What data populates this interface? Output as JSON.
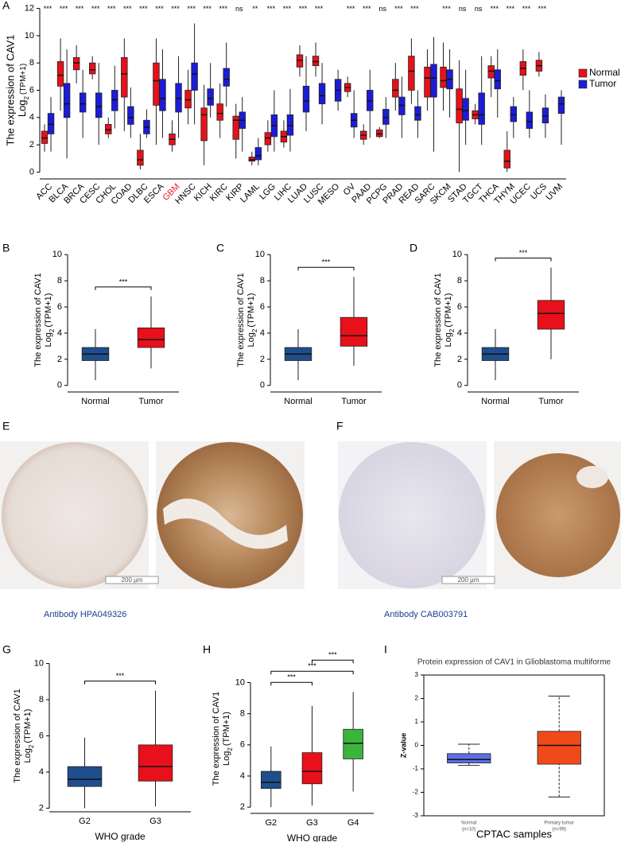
{
  "chart_data": [
    {
      "type": "box",
      "panel": "A",
      "y_label": "The expression of CAV1",
      "y_label_2": "Log",
      "y_label_2_sub": "2",
      "y_label_3": "(TPM+1)",
      "categories": [
        "ACC",
        "BLCA",
        "BRCA",
        "CESC",
        "CHOL",
        "COAD",
        "DLBC",
        "ESCA",
        "GBM",
        "HNSC",
        "KICH",
        "KIRC",
        "KIRP",
        "LAML",
        "LGG",
        "LIHC",
        "LUAD",
        "LUSC",
        "MESO",
        "OV",
        "PAAD",
        "PCPG",
        "PRAD",
        "READ",
        "SARC",
        "SKCM",
        "STAD",
        "TGCT",
        "THCA",
        "THYM",
        "UCEC",
        "UCS",
        "UVM"
      ],
      "highlight": {
        "index": 8,
        "color": "#e8202a"
      },
      "significance": [
        "***",
        "***",
        "***",
        "***",
        "***",
        "***",
        "***",
        "***",
        "***",
        "***",
        "***",
        "***",
        "ns",
        "**",
        "***",
        "***",
        "***",
        "***",
        null,
        "***",
        "***",
        "ns",
        "***",
        "***",
        null,
        "***",
        "ns",
        "ns",
        "***",
        "***",
        "***",
        "***",
        null
      ],
      "ylim": [
        -0.5,
        12.5
      ],
      "yticks": [
        0,
        2,
        4,
        6,
        8,
        10,
        12
      ],
      "legend": "right",
      "series": [
        {
          "name": "Normal",
          "color": "#e8101a",
          "values": [
            {
              "low": 1.5,
              "q1": 2.1,
              "median": 2.5,
              "q3": 3,
              "high": 3.5
            },
            {
              "low": 4.5,
              "q1": 6.3,
              "median": 7.1,
              "q3": 8.1,
              "high": 9.8
            },
            {
              "low": 6.5,
              "q1": 7.5,
              "median": 8,
              "q3": 8.4,
              "high": 9.3
            },
            {
              "low": 6.8,
              "q1": 7.2,
              "median": 7.5,
              "q3": 8,
              "high": 8.5
            },
            {
              "low": 2.5,
              "q1": 2.8,
              "median": 3.1,
              "q3": 3.5,
              "high": 4
            },
            {
              "low": 3,
              "q1": 5.5,
              "median": 7.2,
              "q3": 8.4,
              "high": 9.8
            },
            {
              "low": 0.2,
              "q1": 0.5,
              "median": 0.9,
              "q3": 1.6,
              "high": 2.8
            },
            {
              "low": 2,
              "q1": 4.9,
              "median": 6.7,
              "q3": 8,
              "high": 9.8
            },
            {
              "low": 1.5,
              "q1": 2,
              "median": 2.4,
              "q3": 2.8,
              "high": 3.8
            },
            {
              "low": 3.5,
              "q1": 4.7,
              "median": 5.3,
              "q3": 6,
              "high": 7.5
            },
            {
              "low": 0.5,
              "q1": 2.3,
              "median": 4.2,
              "q3": 4.7,
              "high": 6.4
            },
            {
              "low": 2.5,
              "q1": 3.8,
              "median": 4.3,
              "q3": 5,
              "high": 6.5
            },
            {
              "low": 1,
              "q1": 2.4,
              "median": 3.8,
              "q3": 4.1,
              "high": 5
            },
            {
              "low": 0.5,
              "q1": 0.8,
              "median": 0.9,
              "q3": 1.1,
              "high": 1.5
            },
            {
              "low": 1.5,
              "q1": 2,
              "median": 2.5,
              "q3": 2.9,
              "high": 3.8
            },
            {
              "low": 1.8,
              "q1": 2.2,
              "median": 2.6,
              "q3": 3,
              "high": 3.8
            },
            {
              "low": 7,
              "q1": 7.7,
              "median": 8.2,
              "q3": 8.6,
              "high": 9.3
            },
            {
              "low": 7,
              "q1": 7.8,
              "median": 8.1,
              "q3": 8.5,
              "high": 9.5
            },
            null,
            {
              "low": 5.5,
              "q1": 5.9,
              "median": 6.2,
              "q3": 6.5,
              "high": 7
            },
            {
              "low": 2,
              "q1": 2.4,
              "median": 2.7,
              "q3": 3,
              "high": 3.5
            },
            {
              "low": 2.5,
              "q1": 2.6,
              "median": 2.8,
              "q3": 3.1,
              "high": 3.3
            },
            {
              "low": 4.5,
              "q1": 5.5,
              "median": 6,
              "q3": 6.8,
              "high": 8
            },
            {
              "low": 5,
              "q1": 6,
              "median": 7.4,
              "q3": 8.5,
              "high": 9.8
            },
            {
              "low": 4.5,
              "q1": 5.5,
              "median": 6.9,
              "q3": 7.7,
              "high": 9
            },
            {
              "low": 4.5,
              "q1": 6.2,
              "median": 6.7,
              "q3": 7.7,
              "high": 9.5
            },
            {
              "low": 0,
              "q1": 3.6,
              "median": 4.6,
              "q3": 6.1,
              "high": 8.2
            },
            {
              "low": 3.5,
              "q1": 3.9,
              "median": 4.2,
              "q3": 4.5,
              "high": 5
            },
            {
              "low": 5.5,
              "q1": 6.9,
              "median": 7.4,
              "q3": 7.8,
              "high": 8.5
            },
            {
              "low": 0,
              "q1": 0.3,
              "median": 0.8,
              "q3": 1.6,
              "high": 3
            },
            {
              "low": 6,
              "q1": 7.1,
              "median": 7.6,
              "q3": 8.1,
              "high": 9
            },
            {
              "low": 7,
              "q1": 7.4,
              "median": 7.8,
              "q3": 8.2,
              "high": 8.8
            },
            null
          ]
        },
        {
          "name": "Tumor",
          "color": "#1c1cd8",
          "values": [
            {
              "low": 1.5,
              "q1": 2.8,
              "median": 3.5,
              "q3": 4.3,
              "high": 5.5
            },
            {
              "low": 1,
              "q1": 4,
              "median": 5,
              "q3": 6.5,
              "high": 9
            },
            {
              "low": 2.5,
              "q1": 4.4,
              "median": 5,
              "q3": 5.8,
              "high": 7.5
            },
            {
              "low": 2,
              "q1": 4,
              "median": 4.8,
              "q3": 5.8,
              "high": 8
            },
            {
              "low": 3.2,
              "q1": 4.5,
              "median": 5.3,
              "q3": 6,
              "high": 7.8
            },
            {
              "low": 2.5,
              "q1": 3.5,
              "median": 4,
              "q3": 4.8,
              "high": 6.2
            },
            {
              "low": 2.5,
              "q1": 2.8,
              "median": 3.3,
              "q3": 3.8,
              "high": 4.6
            },
            {
              "low": 2.5,
              "q1": 4.5,
              "median": 5.4,
              "q3": 6.8,
              "high": 9
            },
            {
              "low": 2.5,
              "q1": 4.4,
              "median": 5.4,
              "q3": 6.5,
              "high": 8.5
            },
            {
              "low": 3.5,
              "q1": 6,
              "median": 7.2,
              "q3": 8,
              "high": 10.9
            },
            {
              "low": 4,
              "q1": 4.9,
              "median": 5.4,
              "q3": 6.1,
              "high": 8
            },
            {
              "low": 4.8,
              "q1": 6.3,
              "median": 6.8,
              "q3": 7.6,
              "high": 9.5
            },
            {
              "low": 1.5,
              "q1": 3.2,
              "median": 3.8,
              "q3": 4.4,
              "high": 5.5
            },
            {
              "low": 0.5,
              "q1": 0.9,
              "median": 1.2,
              "q3": 1.8,
              "high": 2.5
            },
            {
              "low": 1.5,
              "q1": 2.6,
              "median": 3.4,
              "q3": 4.2,
              "high": 6
            },
            {
              "low": 1.5,
              "q1": 2.7,
              "median": 3.4,
              "q3": 4.2,
              "high": 6.1
            },
            {
              "low": 3,
              "q1": 4.4,
              "median": 5.2,
              "q3": 6.3,
              "high": 8.5
            },
            {
              "low": 3.5,
              "q1": 5,
              "median": 5.6,
              "q3": 6.5,
              "high": 8
            },
            {
              "low": 4.5,
              "q1": 5.2,
              "median": 6,
              "q3": 6.8,
              "high": 7.5
            },
            {
              "low": 2.5,
              "q1": 3.3,
              "median": 3.8,
              "q3": 4.3,
              "high": 6
            },
            {
              "low": 2.5,
              "q1": 4.5,
              "median": 5.2,
              "q3": 6,
              "high": 7.5
            },
            {
              "low": 2.5,
              "q1": 3.5,
              "median": 4,
              "q3": 4.6,
              "high": 5.5
            },
            {
              "low": 2.5,
              "q1": 4.2,
              "median": 4.9,
              "q3": 5.5,
              "high": 7
            },
            {
              "low": 2.5,
              "q1": 3.8,
              "median": 4.2,
              "q3": 4.8,
              "high": 6
            },
            {
              "low": 1.5,
              "q1": 5.5,
              "median": 6.9,
              "q3": 7.9,
              "high": 9.9
            },
            {
              "low": 4,
              "q1": 6.1,
              "median": 6.8,
              "q3": 7.5,
              "high": 9
            },
            {
              "low": 2,
              "q1": 3.8,
              "median": 4.5,
              "q3": 5.4,
              "high": 7.5
            },
            {
              "low": 2,
              "q1": 3.5,
              "median": 4.2,
              "q3": 5.8,
              "high": 8.5
            },
            {
              "low": 4,
              "q1": 6.1,
              "median": 6.7,
              "q3": 7.5,
              "high": 9
            },
            {
              "low": 2.5,
              "q1": 3.7,
              "median": 4.2,
              "q3": 4.8,
              "high": 5.5
            },
            {
              "low": 2.5,
              "q1": 3.2,
              "median": 3.7,
              "q3": 4.4,
              "high": 6
            },
            {
              "low": 2.5,
              "q1": 3.6,
              "median": 4.1,
              "q3": 4.7,
              "high": 5.7
            },
            {
              "low": 2,
              "q1": 4.3,
              "median": 5,
              "q3": 5.5,
              "high": 6
            }
          ]
        }
      ]
    },
    {
      "type": "box",
      "panel": "B",
      "y_label": "The expression of CAV1",
      "y_label_2": "Log",
      "y_label_2_sub": "2",
      "y_label_3": "(TPM+1)",
      "categories": [
        "Normal",
        "Tumor"
      ],
      "colors": [
        "#1f4e8c",
        "#e8101a"
      ],
      "ylim": [
        -0.5,
        10.5
      ],
      "yticks": [
        0,
        2,
        4,
        6,
        8,
        10
      ],
      "values": [
        {
          "low": 0.4,
          "q1": 1.9,
          "median": 2.4,
          "q3": 2.9,
          "high": 4.3
        },
        {
          "low": 1.3,
          "q1": 2.9,
          "median": 3.5,
          "q3": 4.4,
          "high": 6.8
        }
      ],
      "comparisons": [
        {
          "pair": [
            0,
            1
          ],
          "label": "***"
        }
      ]
    },
    {
      "type": "box",
      "panel": "C",
      "y_label": "The expression of CAV1",
      "y_label_2": "Log",
      "y_label_2_sub": "2",
      "y_label_3": "(TPM+1)",
      "categories": [
        "Normal",
        "Tumor"
      ],
      "colors": [
        "#1f4e8c",
        "#e8101a"
      ],
      "ylim": [
        -0.5,
        10.5
      ],
      "yticks": [
        0,
        2,
        4,
        6,
        8,
        10
      ],
      "values": [
        {
          "low": 0.4,
          "q1": 1.9,
          "median": 2.4,
          "q3": 2.9,
          "high": 4.3
        },
        {
          "low": 1.5,
          "q1": 3,
          "median": 3.8,
          "q3": 5.2,
          "high": 8.3
        }
      ],
      "comparisons": [
        {
          "pair": [
            0,
            1
          ],
          "label": "***"
        }
      ]
    },
    {
      "type": "box",
      "panel": "D",
      "y_label": "The expression of CAV1",
      "y_label_2": "Log",
      "y_label_2_sub": "2",
      "y_label_3": "(TPM+1)",
      "categories": [
        "Normal",
        "Tumor"
      ],
      "colors": [
        "#1f4e8c",
        "#e8101a"
      ],
      "ylim": [
        -0.5,
        10.5
      ],
      "yticks": [
        0,
        2,
        4,
        6,
        8,
        10
      ],
      "values": [
        {
          "low": 0.4,
          "q1": 1.9,
          "median": 2.4,
          "q3": 2.9,
          "high": 4.3
        },
        {
          "low": 2,
          "q1": 4.3,
          "median": 5.5,
          "q3": 6.5,
          "high": 9
        }
      ],
      "comparisons": [
        {
          "pair": [
            0,
            1
          ],
          "label": "***"
        }
      ]
    },
    {
      "type": "box",
      "panel": "G",
      "y_label": "The expression of CAV1",
      "y_label_2": "Log",
      "y_label_2_sub": "2",
      "y_label_3": "(TPM+1)",
      "x_label": "WHO grade",
      "categories": [
        "G2",
        "G3"
      ],
      "colors": [
        "#1f4e8c",
        "#e8101a"
      ],
      "ylim": [
        1.8,
        10.2
      ],
      "yticks": [
        2,
        4,
        6,
        8,
        10
      ],
      "values": [
        {
          "low": 2,
          "q1": 3.2,
          "median": 3.6,
          "q3": 4.3,
          "high": 5.9
        },
        {
          "low": 2.1,
          "q1": 3.5,
          "median": 4.3,
          "q3": 5.5,
          "high": 8.5
        }
      ],
      "comparisons": [
        {
          "pair": [
            0,
            1
          ],
          "label": "***"
        }
      ]
    },
    {
      "type": "box",
      "panel": "H",
      "y_label": "The expression of CAV1",
      "y_label_2": "Log",
      "y_label_2_sub": "2",
      "y_label_3": "(TPM+1)",
      "x_label": "WHO grade",
      "categories": [
        "G2",
        "G3",
        "G4"
      ],
      "colors": [
        "#1f4e8c",
        "#e8101a",
        "#3cb43c"
      ],
      "ylim": [
        1.6,
        11.2
      ],
      "yticks": [
        2,
        4,
        6,
        8,
        10
      ],
      "values": [
        {
          "low": 2,
          "q1": 3.2,
          "median": 3.6,
          "q3": 4.3,
          "high": 5.9
        },
        {
          "low": 2.1,
          "q1": 3.5,
          "median": 4.3,
          "q3": 5.5,
          "high": 8.5
        },
        {
          "low": 3,
          "q1": 5.1,
          "median": 6.1,
          "q3": 7,
          "high": 9.4
        }
      ],
      "comparisons": [
        {
          "pair": [
            0,
            1
          ],
          "label": "***"
        },
        {
          "pair": [
            0,
            2
          ],
          "label": "***"
        },
        {
          "pair": [
            1,
            2
          ],
          "label": "***"
        }
      ]
    },
    {
      "type": "box",
      "panel": "I",
      "title": "Protein expression of CAV1 in Glioblastoma multiforme",
      "y_label": "Z-value",
      "x_label": "CPTAC samples",
      "categories": [
        "Normal",
        "Primary tumor"
      ],
      "n_labels": [
        "(n=10)",
        "(n=99)"
      ],
      "colors": [
        "#5a6fe8",
        "#f04a1a"
      ],
      "ylim": [
        -3,
        3
      ],
      "yticks": [
        -3,
        -2,
        -1,
        0,
        1,
        2,
        3
      ],
      "whisker_caps": true,
      "frame": true,
      "values": [
        {
          "low": -0.85,
          "q1": -0.75,
          "median": -0.6,
          "q3": -0.35,
          "high": 0.05
        },
        {
          "low": -2.2,
          "q1": -0.8,
          "median": 0,
          "q3": 0.6,
          "high": 2.1
        }
      ]
    }
  ],
  "ihc": [
    {
      "panel": "E",
      "scale_bar": "200 µm",
      "caption": "Antibody HPA049326"
    },
    {
      "panel": "F",
      "scale_bar": "200 µm",
      "caption": "Antibody CAB003791"
    }
  ]
}
